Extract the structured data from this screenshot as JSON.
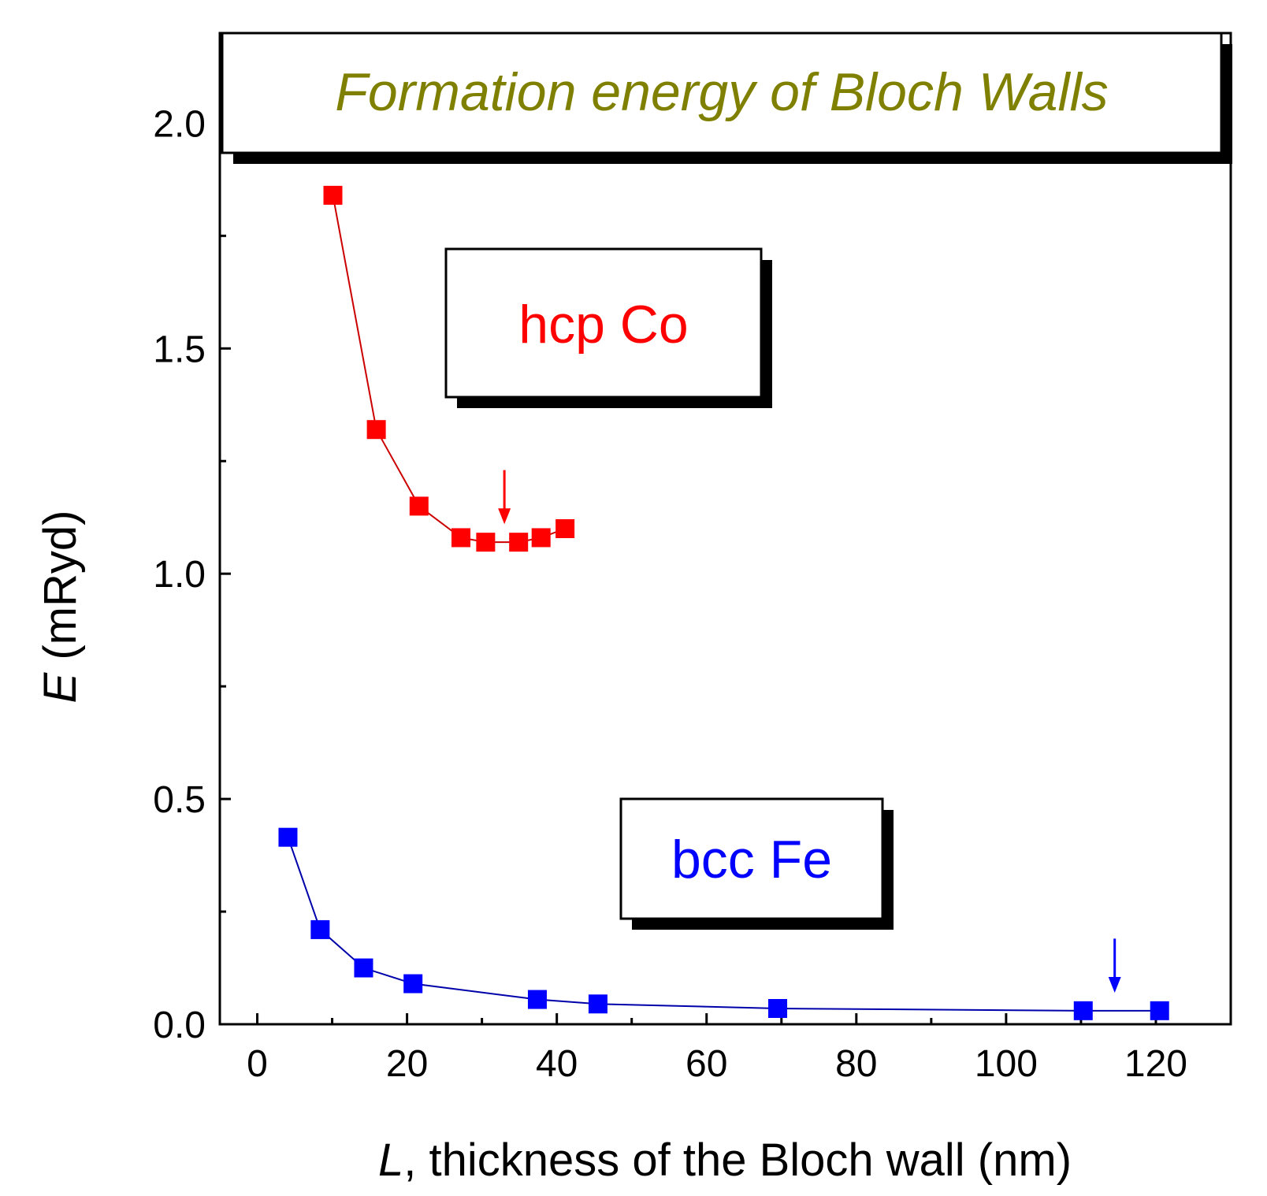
{
  "colors": {
    "title": "#808000",
    "hcp_co": "#ff0000",
    "hcp_co_line": "#cc0000",
    "bcc_fe": "#0000ff",
    "bcc_fe_line": "#0000aa",
    "axis": "#000000",
    "shadow": "#000000"
  },
  "chart_data": {
    "type": "line",
    "title": "Formation energy of Bloch Walls",
    "xlabel_var": "L",
    "xlabel_rest": ", thickness of the Bloch wall (nm)",
    "ylabel_var": "E",
    "ylabel_rest": " (mRyd)",
    "xlim": [
      -5,
      130
    ],
    "ylim": [
      0.0,
      2.2
    ],
    "x_ticks": [
      0,
      20,
      40,
      60,
      80,
      100,
      120
    ],
    "x_tick_labels": [
      "0",
      "20",
      "40",
      "60",
      "80",
      "100",
      "120"
    ],
    "y_ticks": [
      0.0,
      0.5,
      1.0,
      1.5,
      2.0
    ],
    "y_tick_labels": [
      "0.0",
      "0.5",
      "1.0",
      "1.5",
      "2.0"
    ],
    "grid": false,
    "series": [
      {
        "name": "hcp Co",
        "color_key": "hcp_co",
        "x": [
          10.1,
          15.9,
          21.6,
          27.2,
          30.5,
          34.9,
          37.9,
          41.1
        ],
        "y": [
          1.84,
          1.32,
          1.15,
          1.08,
          1.07,
          1.07,
          1.08,
          1.1
        ],
        "marker": "square",
        "arrow_x": 33.0,
        "arrow_y_top": 1.23,
        "arrow_y_bottom": 1.11
      },
      {
        "name": "bcc Fe",
        "color_key": "bcc_fe",
        "x": [
          4.1,
          8.4,
          14.2,
          20.8,
          37.4,
          45.5,
          69.5,
          110.3,
          120.5
        ],
        "y": [
          0.415,
          0.21,
          0.125,
          0.09,
          0.055,
          0.045,
          0.035,
          0.03,
          0.03
        ],
        "marker": "square",
        "arrow_x": 114.5,
        "arrow_y_top": 0.19,
        "arrow_y_bottom": 0.07
      }
    ]
  }
}
